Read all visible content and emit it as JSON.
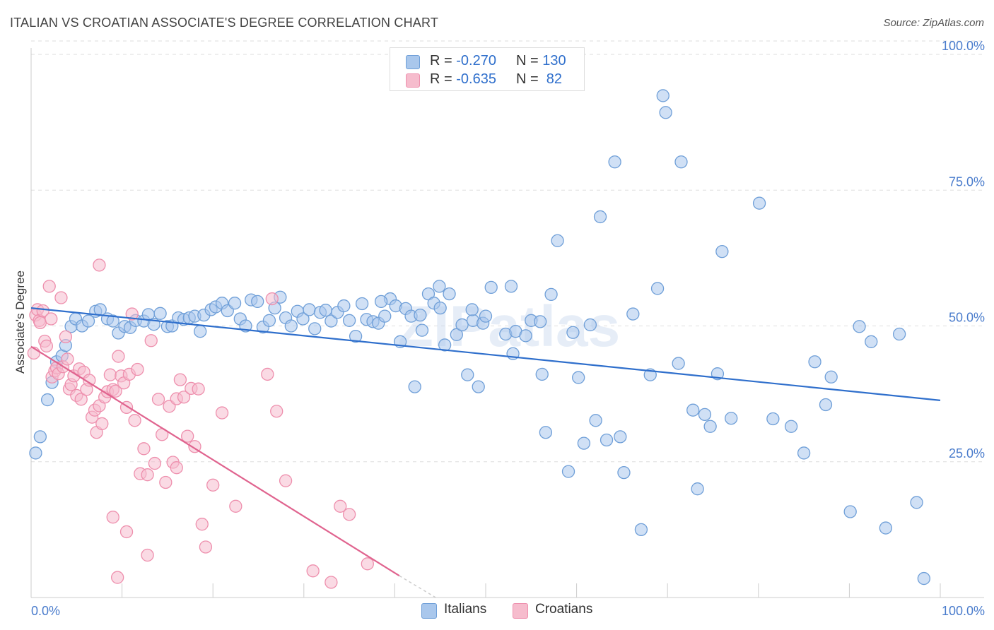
{
  "title": "ITALIAN VS CROATIAN ASSOCIATE'S DEGREE CORRELATION CHART",
  "source": "Source: ZipAtlas.com",
  "watermark": "ZIPatlas",
  "legend_top": {
    "rows": [
      {
        "r_label": "R = ",
        "r_value": "-0.270",
        "n_label": "N = ",
        "n_value": "130"
      },
      {
        "r_label": "R = ",
        "r_value": "-0.635",
        "n_label": "N = ",
        "n_value": " 82"
      }
    ]
  },
  "legend_bottom": {
    "italians": "Italians",
    "croatians": "Croatians"
  },
  "colors": {
    "italian_fill": "#a9c7ec",
    "italian_stroke": "#6f9fd8",
    "italian_line": "#2f6fcc",
    "croatian_fill": "#f6bccd",
    "croatian_stroke": "#ee8fad",
    "croatian_line": "#e0648f",
    "grid": "#dddddd",
    "axis_text": "#4a7ccc"
  },
  "chart_data": {
    "type": "scatter",
    "title": "ITALIAN VS CROATIAN ASSOCIATE'S DEGREE CORRELATION CHART",
    "xlabel": "",
    "ylabel": "Associate's Degree",
    "xlim": [
      0,
      100
    ],
    "ylim": [
      0,
      100
    ],
    "x_tick_labels": [
      "0.0%",
      "100.0%"
    ],
    "y_ticks": [
      25,
      50,
      75,
      100
    ],
    "y_tick_labels": [
      "25.0%",
      "50.0%",
      "75.0%",
      "100.0%"
    ],
    "series": [
      {
        "name": "Italians",
        "r": -0.27,
        "n": 130,
        "trend": {
          "x0": 0,
          "y0": 53.3,
          "x1": 100,
          "y1": 36.3
        },
        "points": [
          [
            0.5,
            26.6
          ],
          [
            1.0,
            29.6
          ],
          [
            1.8,
            36.4
          ],
          [
            2.3,
            39.6
          ],
          [
            2.8,
            43.4
          ],
          [
            3.4,
            44.5
          ],
          [
            3.8,
            46.4
          ],
          [
            4.4,
            49.9
          ],
          [
            4.9,
            51.3
          ],
          [
            5.6,
            50.0
          ],
          [
            6.3,
            50.9
          ],
          [
            7.1,
            52.7
          ],
          [
            7.6,
            53.0
          ],
          [
            8.4,
            51.3
          ],
          [
            9.0,
            50.9
          ],
          [
            9.6,
            48.7
          ],
          [
            10.3,
            49.9
          ],
          [
            10.9,
            49.7
          ],
          [
            11.5,
            51.0
          ],
          [
            12.4,
            50.9
          ],
          [
            12.9,
            52.1
          ],
          [
            13.5,
            50.3
          ],
          [
            14.2,
            52.3
          ],
          [
            15.0,
            49.9
          ],
          [
            15.5,
            50.0
          ],
          [
            16.2,
            51.5
          ],
          [
            16.8,
            51.2
          ],
          [
            17.4,
            51.5
          ],
          [
            18.0,
            51.8
          ],
          [
            18.6,
            49.0
          ],
          [
            19.0,
            52.0
          ],
          [
            19.8,
            53.0
          ],
          [
            20.3,
            53.5
          ],
          [
            21.0,
            54.2
          ],
          [
            21.6,
            52.8
          ],
          [
            22.4,
            54.2
          ],
          [
            23.0,
            51.3
          ],
          [
            23.6,
            50.0
          ],
          [
            24.2,
            54.8
          ],
          [
            24.9,
            54.5
          ],
          [
            25.5,
            49.8
          ],
          [
            26.2,
            51.0
          ],
          [
            26.8,
            53.3
          ],
          [
            27.4,
            55.3
          ],
          [
            28.0,
            51.5
          ],
          [
            28.6,
            50.0
          ],
          [
            29.3,
            52.7
          ],
          [
            29.9,
            51.3
          ],
          [
            30.6,
            53.0
          ],
          [
            31.2,
            49.5
          ],
          [
            31.8,
            52.5
          ],
          [
            32.4,
            52.9
          ],
          [
            33.0,
            50.9
          ],
          [
            33.7,
            52.5
          ],
          [
            34.4,
            53.7
          ],
          [
            35.0,
            51.0
          ],
          [
            35.7,
            48.1
          ],
          [
            36.4,
            54.1
          ],
          [
            36.9,
            51.2
          ],
          [
            37.6,
            50.8
          ],
          [
            38.2,
            50.5
          ],
          [
            38.9,
            51.8
          ],
          [
            39.5,
            55.0
          ],
          [
            40.1,
            53.7
          ],
          [
            40.6,
            47.1
          ],
          [
            41.2,
            53.2
          ],
          [
            41.8,
            51.8
          ],
          [
            42.2,
            38.8
          ],
          [
            43.0,
            49.2
          ],
          [
            43.7,
            55.9
          ],
          [
            44.3,
            54.2
          ],
          [
            44.9,
            57.3
          ],
          [
            45.5,
            46.5
          ],
          [
            46.0,
            55.9
          ],
          [
            46.8,
            48.4
          ],
          [
            47.4,
            50.2
          ],
          [
            48.0,
            41.0
          ],
          [
            48.6,
            51.0
          ],
          [
            49.2,
            38.8
          ],
          [
            49.7,
            50.5
          ],
          [
            50.6,
            57.1
          ],
          [
            52.2,
            48.5
          ],
          [
            53.0,
            44.9
          ],
          [
            53.3,
            49.0
          ],
          [
            55.0,
            51.0
          ],
          [
            56.2,
            41.1
          ],
          [
            56.6,
            30.4
          ],
          [
            57.2,
            55.8
          ],
          [
            57.9,
            65.7
          ],
          [
            59.1,
            23.2
          ],
          [
            60.2,
            40.5
          ],
          [
            60.8,
            28.4
          ],
          [
            62.1,
            32.6
          ],
          [
            62.6,
            70.1
          ],
          [
            63.3,
            29.0
          ],
          [
            64.2,
            80.2
          ],
          [
            64.8,
            29.6
          ],
          [
            65.2,
            23.0
          ],
          [
            66.2,
            52.2
          ],
          [
            67.1,
            12.5
          ],
          [
            68.1,
            41.0
          ],
          [
            68.9,
            56.9
          ],
          [
            69.5,
            92.4
          ],
          [
            69.8,
            89.3
          ],
          [
            71.2,
            43.1
          ],
          [
            71.5,
            80.2
          ],
          [
            72.8,
            34.5
          ],
          [
            73.3,
            20.0
          ],
          [
            74.1,
            33.7
          ],
          [
            74.7,
            31.5
          ],
          [
            75.5,
            41.2
          ],
          [
            76.0,
            63.7
          ],
          [
            77.0,
            33.0
          ],
          [
            80.1,
            72.6
          ],
          [
            81.6,
            32.9
          ],
          [
            83.6,
            31.5
          ],
          [
            85.0,
            26.6
          ],
          [
            86.2,
            43.4
          ],
          [
            87.4,
            35.5
          ],
          [
            88.0,
            40.6
          ],
          [
            90.1,
            15.8
          ],
          [
            91.1,
            49.9
          ],
          [
            92.4,
            47.1
          ],
          [
            94.0,
            12.8
          ],
          [
            95.5,
            48.5
          ],
          [
            97.4,
            17.5
          ],
          [
            98.2,
            3.5
          ],
          [
            48.5,
            53.0
          ],
          [
            52.8,
            57.3
          ],
          [
            56.0,
            50.8
          ],
          [
            59.6,
            48.8
          ],
          [
            61.5,
            50.2
          ],
          [
            45.0,
            53.3
          ],
          [
            38.5,
            54.5
          ],
          [
            42.8,
            52.0
          ],
          [
            50.0,
            51.8
          ],
          [
            54.4,
            48.2
          ]
        ]
      },
      {
        "name": "Croatians",
        "r": -0.635,
        "n": 82,
        "trend": {
          "x0": 0,
          "y0": 46.2,
          "x1": 40.5,
          "y1": 4.0,
          "dash_to_x": 44.5,
          "dash_to_y": 0
        },
        "points": [
          [
            0.3,
            45.0
          ],
          [
            0.5,
            52.0
          ],
          [
            0.7,
            53.0
          ],
          [
            0.9,
            51.0
          ],
          [
            1.0,
            50.6
          ],
          [
            1.3,
            52.8
          ],
          [
            1.5,
            47.2
          ],
          [
            1.7,
            46.3
          ],
          [
            2.0,
            57.3
          ],
          [
            2.2,
            51.3
          ],
          [
            2.3,
            40.6
          ],
          [
            2.6,
            41.7
          ],
          [
            2.8,
            42.3
          ],
          [
            3.0,
            41.2
          ],
          [
            3.3,
            55.2
          ],
          [
            3.5,
            42.5
          ],
          [
            3.8,
            48.0
          ],
          [
            4.0,
            43.9
          ],
          [
            4.2,
            38.4
          ],
          [
            4.4,
            39.2
          ],
          [
            4.7,
            40.8
          ],
          [
            5.0,
            37.2
          ],
          [
            5.3,
            42.1
          ],
          [
            5.5,
            36.5
          ],
          [
            5.8,
            41.5
          ],
          [
            6.1,
            38.3
          ],
          [
            6.4,
            40.0
          ],
          [
            6.7,
            33.2
          ],
          [
            7.0,
            34.5
          ],
          [
            7.2,
            30.4
          ],
          [
            7.5,
            35.3
          ],
          [
            7.8,
            32.0
          ],
          [
            8.1,
            36.9
          ],
          [
            8.4,
            37.9
          ],
          [
            8.7,
            41.0
          ],
          [
            9.0,
            38.3
          ],
          [
            9.3,
            38.0
          ],
          [
            9.6,
            44.4
          ],
          [
            9.9,
            40.8
          ],
          [
            10.2,
            39.5
          ],
          [
            10.5,
            35.0
          ],
          [
            10.8,
            41.1
          ],
          [
            11.1,
            52.2
          ],
          [
            11.4,
            32.6
          ],
          [
            11.7,
            42.0
          ],
          [
            12.0,
            22.8
          ],
          [
            12.4,
            27.4
          ],
          [
            12.8,
            22.6
          ],
          [
            13.2,
            47.3
          ],
          [
            13.6,
            24.7
          ],
          [
            14.0,
            36.5
          ],
          [
            14.4,
            30.0
          ],
          [
            14.8,
            21.2
          ],
          [
            15.2,
            35.2
          ],
          [
            15.6,
            24.9
          ],
          [
            16.0,
            36.6
          ],
          [
            16.4,
            40.1
          ],
          [
            16.8,
            36.9
          ],
          [
            17.2,
            29.7
          ],
          [
            17.6,
            38.5
          ],
          [
            18.0,
            27.8
          ],
          [
            18.4,
            38.4
          ],
          [
            18.8,
            13.5
          ],
          [
            19.2,
            9.3
          ],
          [
            20.0,
            20.7
          ],
          [
            21.0,
            34.0
          ],
          [
            22.5,
            16.8
          ],
          [
            7.5,
            61.2
          ],
          [
            9.0,
            14.8
          ],
          [
            9.5,
            3.7
          ],
          [
            10.5,
            12.1
          ],
          [
            12.8,
            7.8
          ],
          [
            16.0,
            23.9
          ],
          [
            26.0,
            41.1
          ],
          [
            26.5,
            55.0
          ],
          [
            27.0,
            34.3
          ],
          [
            28.0,
            21.5
          ],
          [
            31.0,
            4.9
          ],
          [
            33.0,
            2.8
          ],
          [
            34.0,
            16.8
          ],
          [
            35.0,
            15.3
          ],
          [
            37.0,
            6.2
          ]
        ]
      }
    ]
  }
}
